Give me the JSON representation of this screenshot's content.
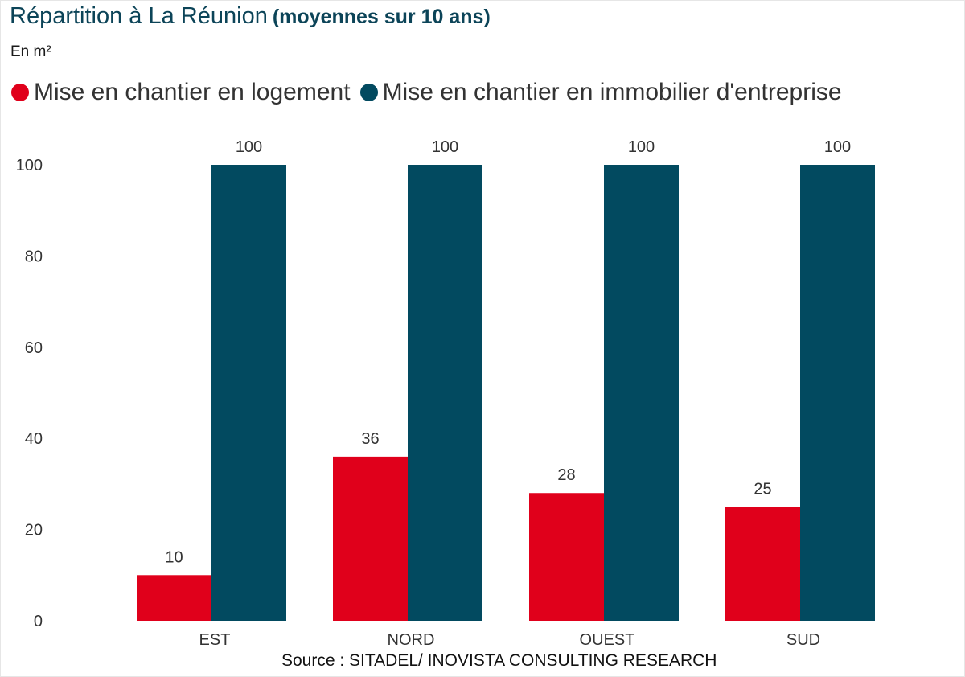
{
  "title": "Répartition à La Réunion",
  "subtitle": "(moyennes sur 10 ans)",
  "unit": "En m²",
  "source": "Source : SITADEL/ INOVISTA CONSULTING RESEARCH",
  "colors": {
    "logement": "#e0001b",
    "entreprise": "#024a60",
    "title": "#0c4458"
  },
  "chart_data": {
    "type": "bar",
    "title": "Répartition à La Réunion (moyennes sur 10 ans)",
    "ylabel": "En m²",
    "xlabel": "",
    "categories": [
      "EST",
      "NORD",
      "OUEST",
      "SUD"
    ],
    "series": [
      {
        "name": "Mise en chantier en logement",
        "values": [
          10,
          36,
          28,
          25
        ],
        "color": "#e0001b"
      },
      {
        "name": "Mise en chantier en immobilier d'entreprise",
        "values": [
          100,
          100,
          100,
          100
        ],
        "color": "#024a60"
      }
    ],
    "ylim": [
      0,
      100
    ],
    "yticks": [
      "0",
      "20",
      "40",
      "60",
      "80",
      "100"
    ],
    "grid": false,
    "legend": "top-left",
    "data_labels": true
  }
}
